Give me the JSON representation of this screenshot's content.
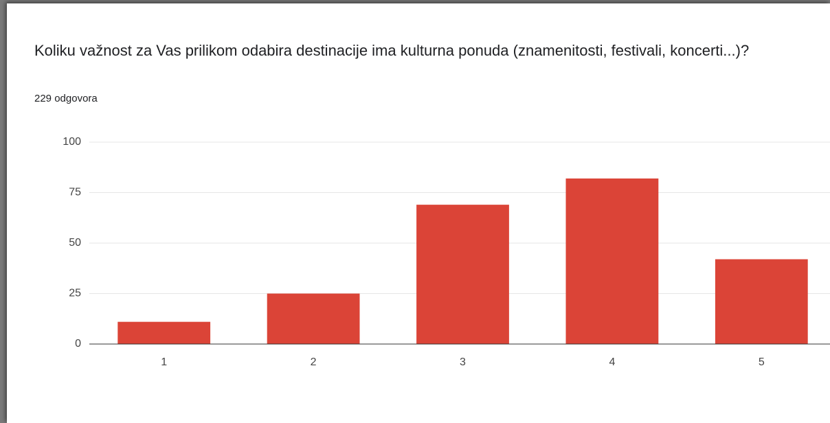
{
  "chart_data": {
    "type": "bar",
    "title": "Koliku važnost za Vas prilikom odabira destinacije ima kulturna ponuda (znamenitosti, festivali, koncerti...)?",
    "subtitle": "229 odgovora",
    "categories": [
      "1",
      "2",
      "3",
      "4",
      "5"
    ],
    "values": [
      11,
      25,
      69,
      82,
      42
    ],
    "color": "#db4437",
    "ylim": [
      0,
      100
    ],
    "yticks": [
      0,
      25,
      50,
      75,
      100
    ],
    "grid": true
  }
}
